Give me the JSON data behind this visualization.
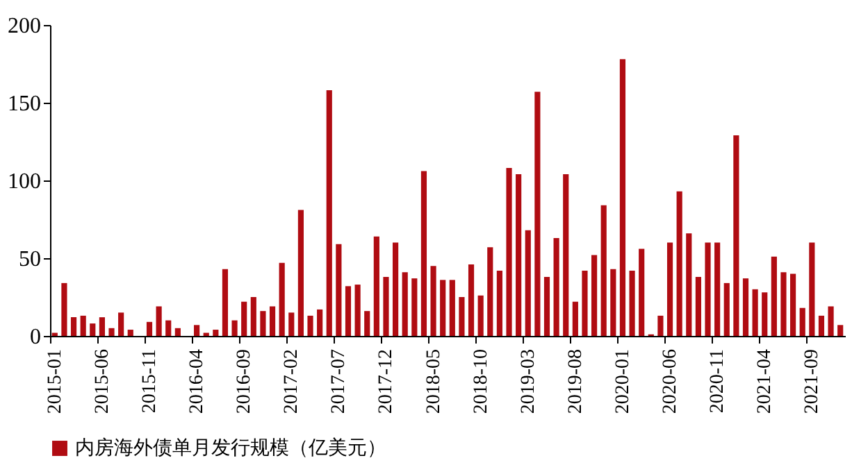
{
  "chart_data": {
    "type": "bar",
    "categories": [
      "2015-01",
      null,
      null,
      null,
      null,
      "2015-06",
      null,
      null,
      null,
      null,
      "2015-11",
      null,
      null,
      null,
      null,
      "2016-04",
      null,
      null,
      null,
      null,
      "2016-09",
      null,
      null,
      null,
      null,
      "2017-02",
      null,
      null,
      null,
      null,
      "2017-07",
      null,
      null,
      null,
      null,
      "2017-12",
      null,
      null,
      null,
      null,
      "2018-05",
      null,
      null,
      null,
      null,
      "2018-10",
      null,
      null,
      null,
      null,
      "2019-03",
      null,
      null,
      null,
      null,
      "2019-08",
      null,
      null,
      null,
      null,
      "2020-01",
      null,
      null,
      null,
      null,
      "2020-06",
      null,
      null,
      null,
      null,
      "2020-11",
      null,
      null,
      null,
      null,
      "2021-04",
      null,
      null,
      null,
      null,
      "2021-09",
      null,
      null,
      null
    ],
    "series": [
      {
        "name": "内房海外债单月发行规模（亿美元）",
        "color": "#b00c12",
        "values": [
          2,
          34,
          12,
          13,
          8,
          12,
          5,
          15,
          4,
          0,
          9,
          19,
          10,
          5,
          0,
          7,
          2,
          4,
          43,
          10,
          22,
          25,
          16,
          19,
          47,
          15,
          81,
          13,
          17,
          158,
          59,
          32,
          33,
          16,
          64,
          38,
          60,
          41,
          37,
          106,
          45,
          36,
          36,
          25,
          46,
          26,
          57,
          42,
          108,
          104,
          68,
          157,
          38,
          63,
          104,
          22,
          42,
          52,
          84,
          43,
          178,
          42,
          56,
          1,
          13,
          60,
          93,
          66,
          38,
          60,
          60,
          34,
          129,
          37,
          30,
          28,
          51,
          41,
          40,
          18,
          60,
          13,
          19,
          7
        ]
      }
    ],
    "ylim": [
      0,
      200
    ],
    "yticks": [
      0,
      50,
      100,
      150,
      200
    ],
    "grid": false,
    "legend": "bottom"
  }
}
